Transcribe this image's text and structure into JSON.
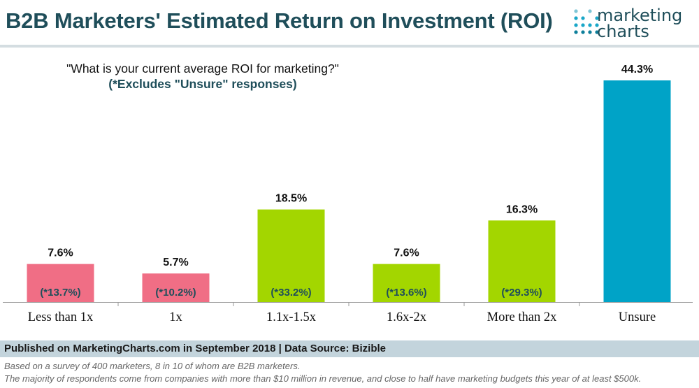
{
  "header": {
    "title": "B2B Marketers' Estimated Return on Investment (ROI)",
    "logo_line1": "marketing",
    "logo_line2": "charts"
  },
  "subtitle": {
    "question": "\"What is your current average ROI for marketing?\"",
    "note": "(*Excludes \"Unsure\" responses)"
  },
  "chart_data": {
    "type": "bar",
    "title": "B2B Marketers' Estimated Return on Investment (ROI)",
    "subtitle": "\"What is your current average ROI for marketing?\"",
    "categories": [
      "Less than 1x",
      "1x",
      "1.1x-1.5x",
      "1.6x-2x",
      "More than 2x",
      "Unsure"
    ],
    "values": [
      7.6,
      5.7,
      18.5,
      7.6,
      16.3,
      44.3
    ],
    "value_labels": [
      "7.6%",
      "5.7%",
      "18.5%",
      "7.6%",
      "16.3%",
      "44.3%"
    ],
    "excluding_unsure_labels": [
      "(*13.7%)",
      "(*10.2%)",
      "(*33.2%)",
      "(*13.6%)",
      "(*29.3%)",
      ""
    ],
    "excluding_unsure_values": [
      13.7,
      10.2,
      33.2,
      13.6,
      29.3,
      null
    ],
    "bar_colors": [
      "#f06e85",
      "#f06e85",
      "#a3d600",
      "#a3d600",
      "#a3d600",
      "#00a3c7"
    ],
    "ylim": [
      0,
      44.3
    ],
    "grid": false,
    "xlabel": "",
    "ylabel": ""
  },
  "footer": {
    "source": "Published on MarketingCharts.com in September 2018 | Data Source: Bizible",
    "note1": "Based on a survey of 400 marketers, 8 in 10 of whom are B2B marketers.",
    "note2": "The majority of respondents come from companies with more than $10 million in revenue, and close to half have marketing budgets this year of at least $500k."
  }
}
